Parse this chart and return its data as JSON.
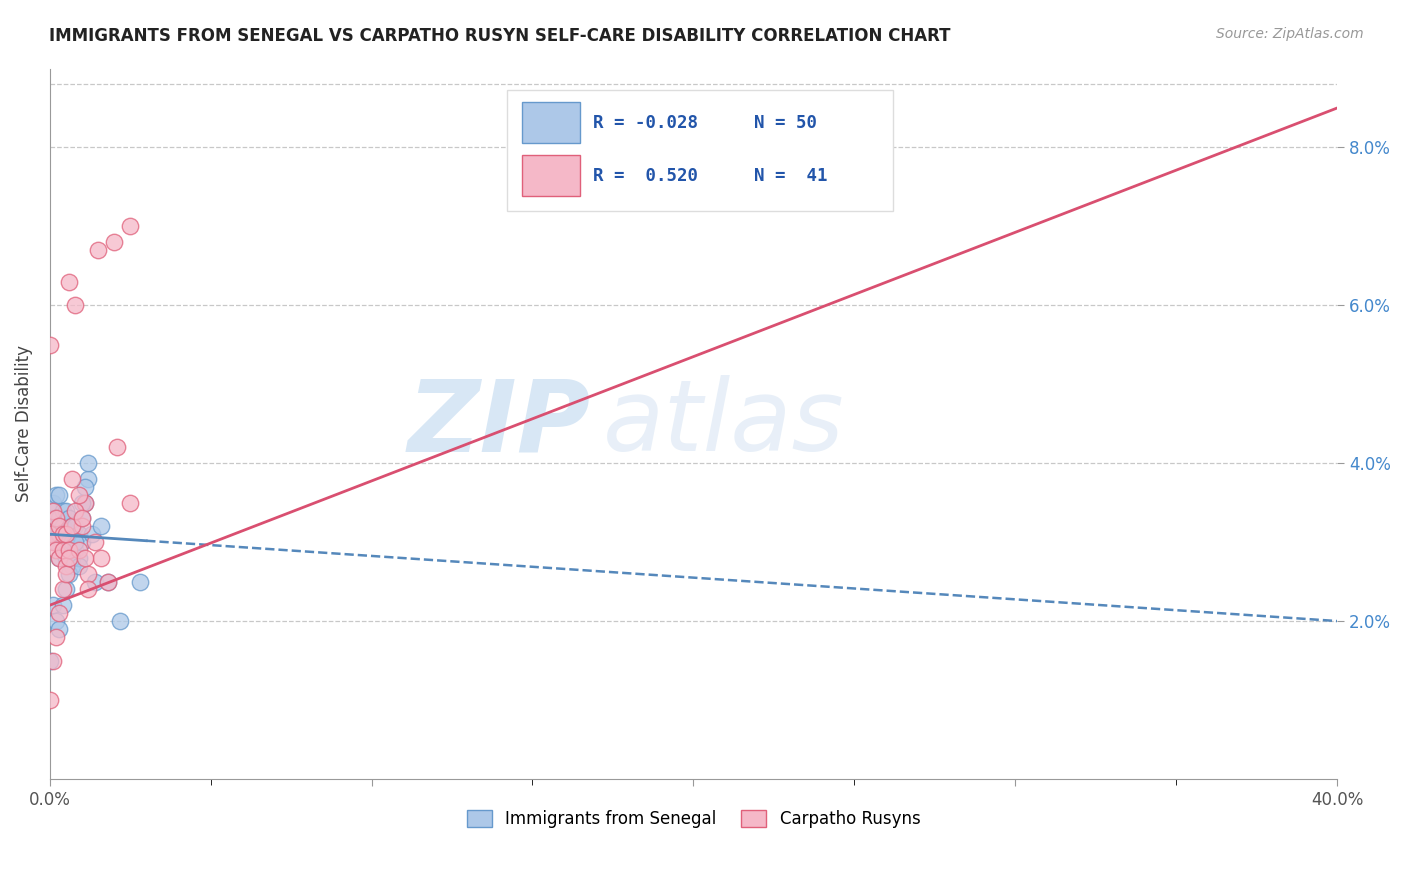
{
  "title": "IMMIGRANTS FROM SENEGAL VS CARPATHO RUSYN SELF-CARE DISABILITY CORRELATION CHART",
  "source": "Source: ZipAtlas.com",
  "ylabel": "Self-Care Disability",
  "x_min": 0.0,
  "x_max": 0.4,
  "y_min": 0.0,
  "y_max": 0.09,
  "blue_color": "#adc8e8",
  "pink_color": "#f5b8c8",
  "blue_edge_color": "#6699cc",
  "pink_edge_color": "#e0607a",
  "blue_line_color": "#5588bb",
  "pink_line_color": "#d94f70",
  "blue_scatter_x": [
    0.0,
    0.0,
    0.001,
    0.001,
    0.001,
    0.002,
    0.002,
    0.002,
    0.003,
    0.003,
    0.003,
    0.003,
    0.004,
    0.004,
    0.004,
    0.005,
    0.005,
    0.005,
    0.006,
    0.006,
    0.007,
    0.007,
    0.007,
    0.008,
    0.008,
    0.009,
    0.009,
    0.01,
    0.01,
    0.011,
    0.012,
    0.013,
    0.014,
    0.016,
    0.018,
    0.022,
    0.028,
    0.0,
    0.001,
    0.002,
    0.003,
    0.004,
    0.005,
    0.006,
    0.007,
    0.008,
    0.009,
    0.01,
    0.011,
    0.012
  ],
  "blue_scatter_y": [
    0.032,
    0.034,
    0.031,
    0.033,
    0.035,
    0.03,
    0.033,
    0.036,
    0.028,
    0.031,
    0.033,
    0.036,
    0.029,
    0.032,
    0.034,
    0.028,
    0.031,
    0.034,
    0.03,
    0.033,
    0.027,
    0.03,
    0.032,
    0.029,
    0.032,
    0.028,
    0.031,
    0.03,
    0.033,
    0.035,
    0.038,
    0.031,
    0.025,
    0.032,
    0.025,
    0.02,
    0.025,
    0.015,
    0.022,
    0.02,
    0.019,
    0.022,
    0.024,
    0.026,
    0.028,
    0.03,
    0.027,
    0.035,
    0.037,
    0.04
  ],
  "pink_scatter_x": [
    0.0,
    0.0,
    0.001,
    0.001,
    0.002,
    0.002,
    0.003,
    0.003,
    0.004,
    0.004,
    0.005,
    0.005,
    0.006,
    0.006,
    0.007,
    0.008,
    0.009,
    0.01,
    0.011,
    0.012,
    0.014,
    0.016,
    0.018,
    0.021,
    0.025,
    0.0,
    0.001,
    0.002,
    0.003,
    0.004,
    0.005,
    0.006,
    0.007,
    0.008,
    0.009,
    0.01,
    0.011,
    0.012,
    0.015,
    0.02,
    0.025
  ],
  "pink_scatter_y": [
    0.031,
    0.055,
    0.03,
    0.034,
    0.029,
    0.033,
    0.028,
    0.032,
    0.029,
    0.031,
    0.027,
    0.031,
    0.029,
    0.063,
    0.038,
    0.06,
    0.029,
    0.032,
    0.035,
    0.026,
    0.03,
    0.028,
    0.025,
    0.042,
    0.035,
    0.01,
    0.015,
    0.018,
    0.021,
    0.024,
    0.026,
    0.028,
    0.032,
    0.034,
    0.036,
    0.033,
    0.028,
    0.024,
    0.067,
    0.068,
    0.07
  ],
  "blue_line_x": [
    0.0,
    0.4
  ],
  "blue_line_y": [
    0.031,
    0.02
  ],
  "pink_line_x": [
    0.0,
    0.4
  ],
  "pink_line_y": [
    0.022,
    0.085
  ],
  "watermark_zip": "ZIP",
  "watermark_atlas": "atlas",
  "bottom_legend": [
    "Immigrants from Senegal",
    "Carpatho Rusyns"
  ],
  "legend_r_blue": "R = -0.028",
  "legend_n_blue": "N = 50",
  "legend_r_pink": "R =  0.520",
  "legend_n_pink": "N =  41"
}
